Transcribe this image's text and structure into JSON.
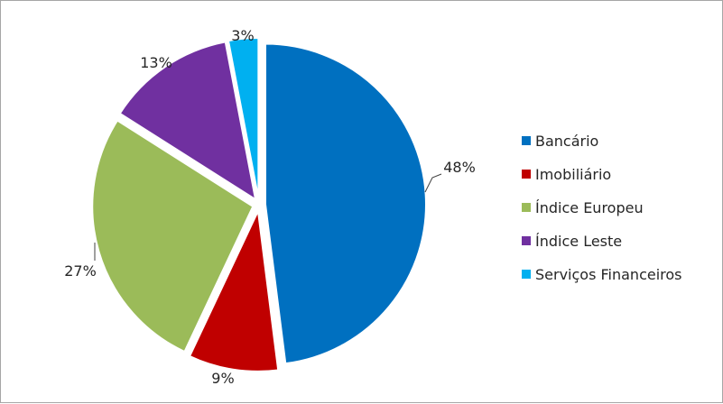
{
  "chart_data": {
    "type": "pie",
    "title": "",
    "categories": [
      "Bancário",
      "Imobiliário",
      "Índice Europeu",
      "Índice Leste",
      "Serviços Financeiros"
    ],
    "values": [
      48,
      9,
      27,
      13,
      3
    ],
    "data_labels": [
      "48%",
      "9%",
      "27%",
      "13%",
      "3%"
    ],
    "colors": [
      "#0070c0",
      "#c00000",
      "#9bbb59",
      "#7030a0",
      "#00b0f0"
    ],
    "exploded": true,
    "legend_position": "right"
  }
}
